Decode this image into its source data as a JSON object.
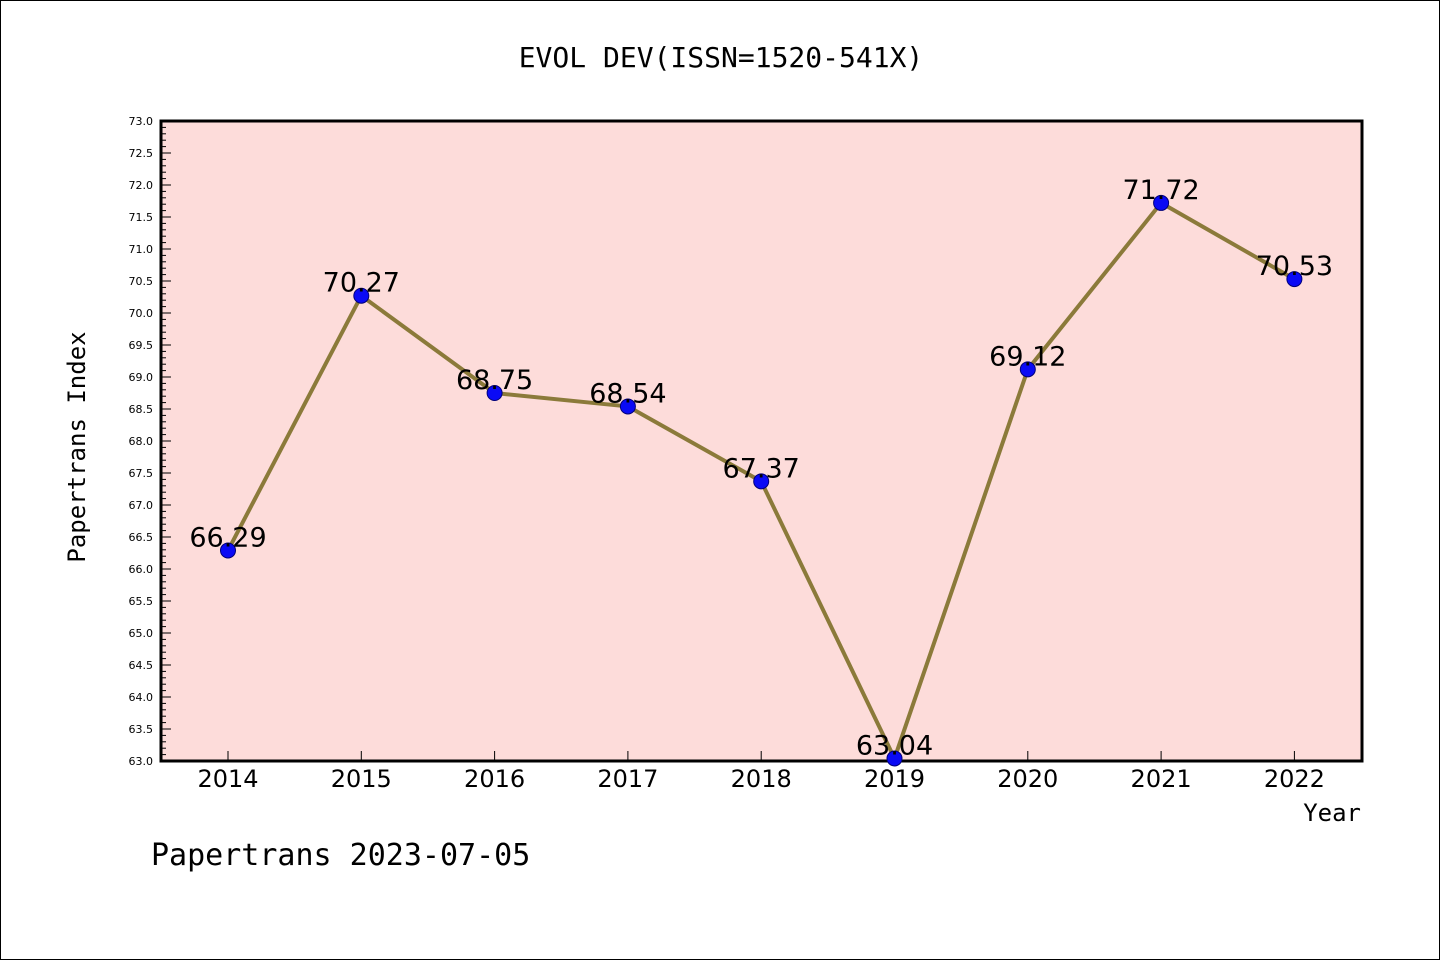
{
  "chart_data": {
    "type": "line",
    "title": "EVOL DEV(ISSN=1520-541X)",
    "xlabel": "Year",
    "ylabel": "Papertrans Index",
    "categories": [
      "2014",
      "2015",
      "2016",
      "2017",
      "2018",
      "2019",
      "2020",
      "2021",
      "2022"
    ],
    "series": [
      {
        "values": [
          66.29,
          70.27,
          68.75,
          68.54,
          67.37,
          63.04,
          69.12,
          71.72,
          70.53
        ]
      }
    ],
    "data_labels": [
      "66.29",
      "70.27",
      "68.75",
      "68.54",
      "67.37",
      "63.04",
      "69.12",
      "71.72",
      "70.53"
    ],
    "yticks": [
      "63.0",
      "63.5",
      "64.0",
      "64.5",
      "65.0",
      "65.5",
      "66.0",
      "66.5",
      "67.0",
      "67.5",
      "68.0",
      "68.5",
      "69.0",
      "69.5",
      "70.0",
      "70.5",
      "71.0",
      "71.5",
      "72.0",
      "72.5",
      "73.0"
    ],
    "ylim": [
      63.0,
      73.0
    ],
    "grid": false,
    "legend": "none",
    "colors": {
      "plot_background": "#fddcda",
      "line": "#8b7a3a",
      "marker": "#0a0af5"
    }
  },
  "footer": "Papertrans 2023-07-05"
}
